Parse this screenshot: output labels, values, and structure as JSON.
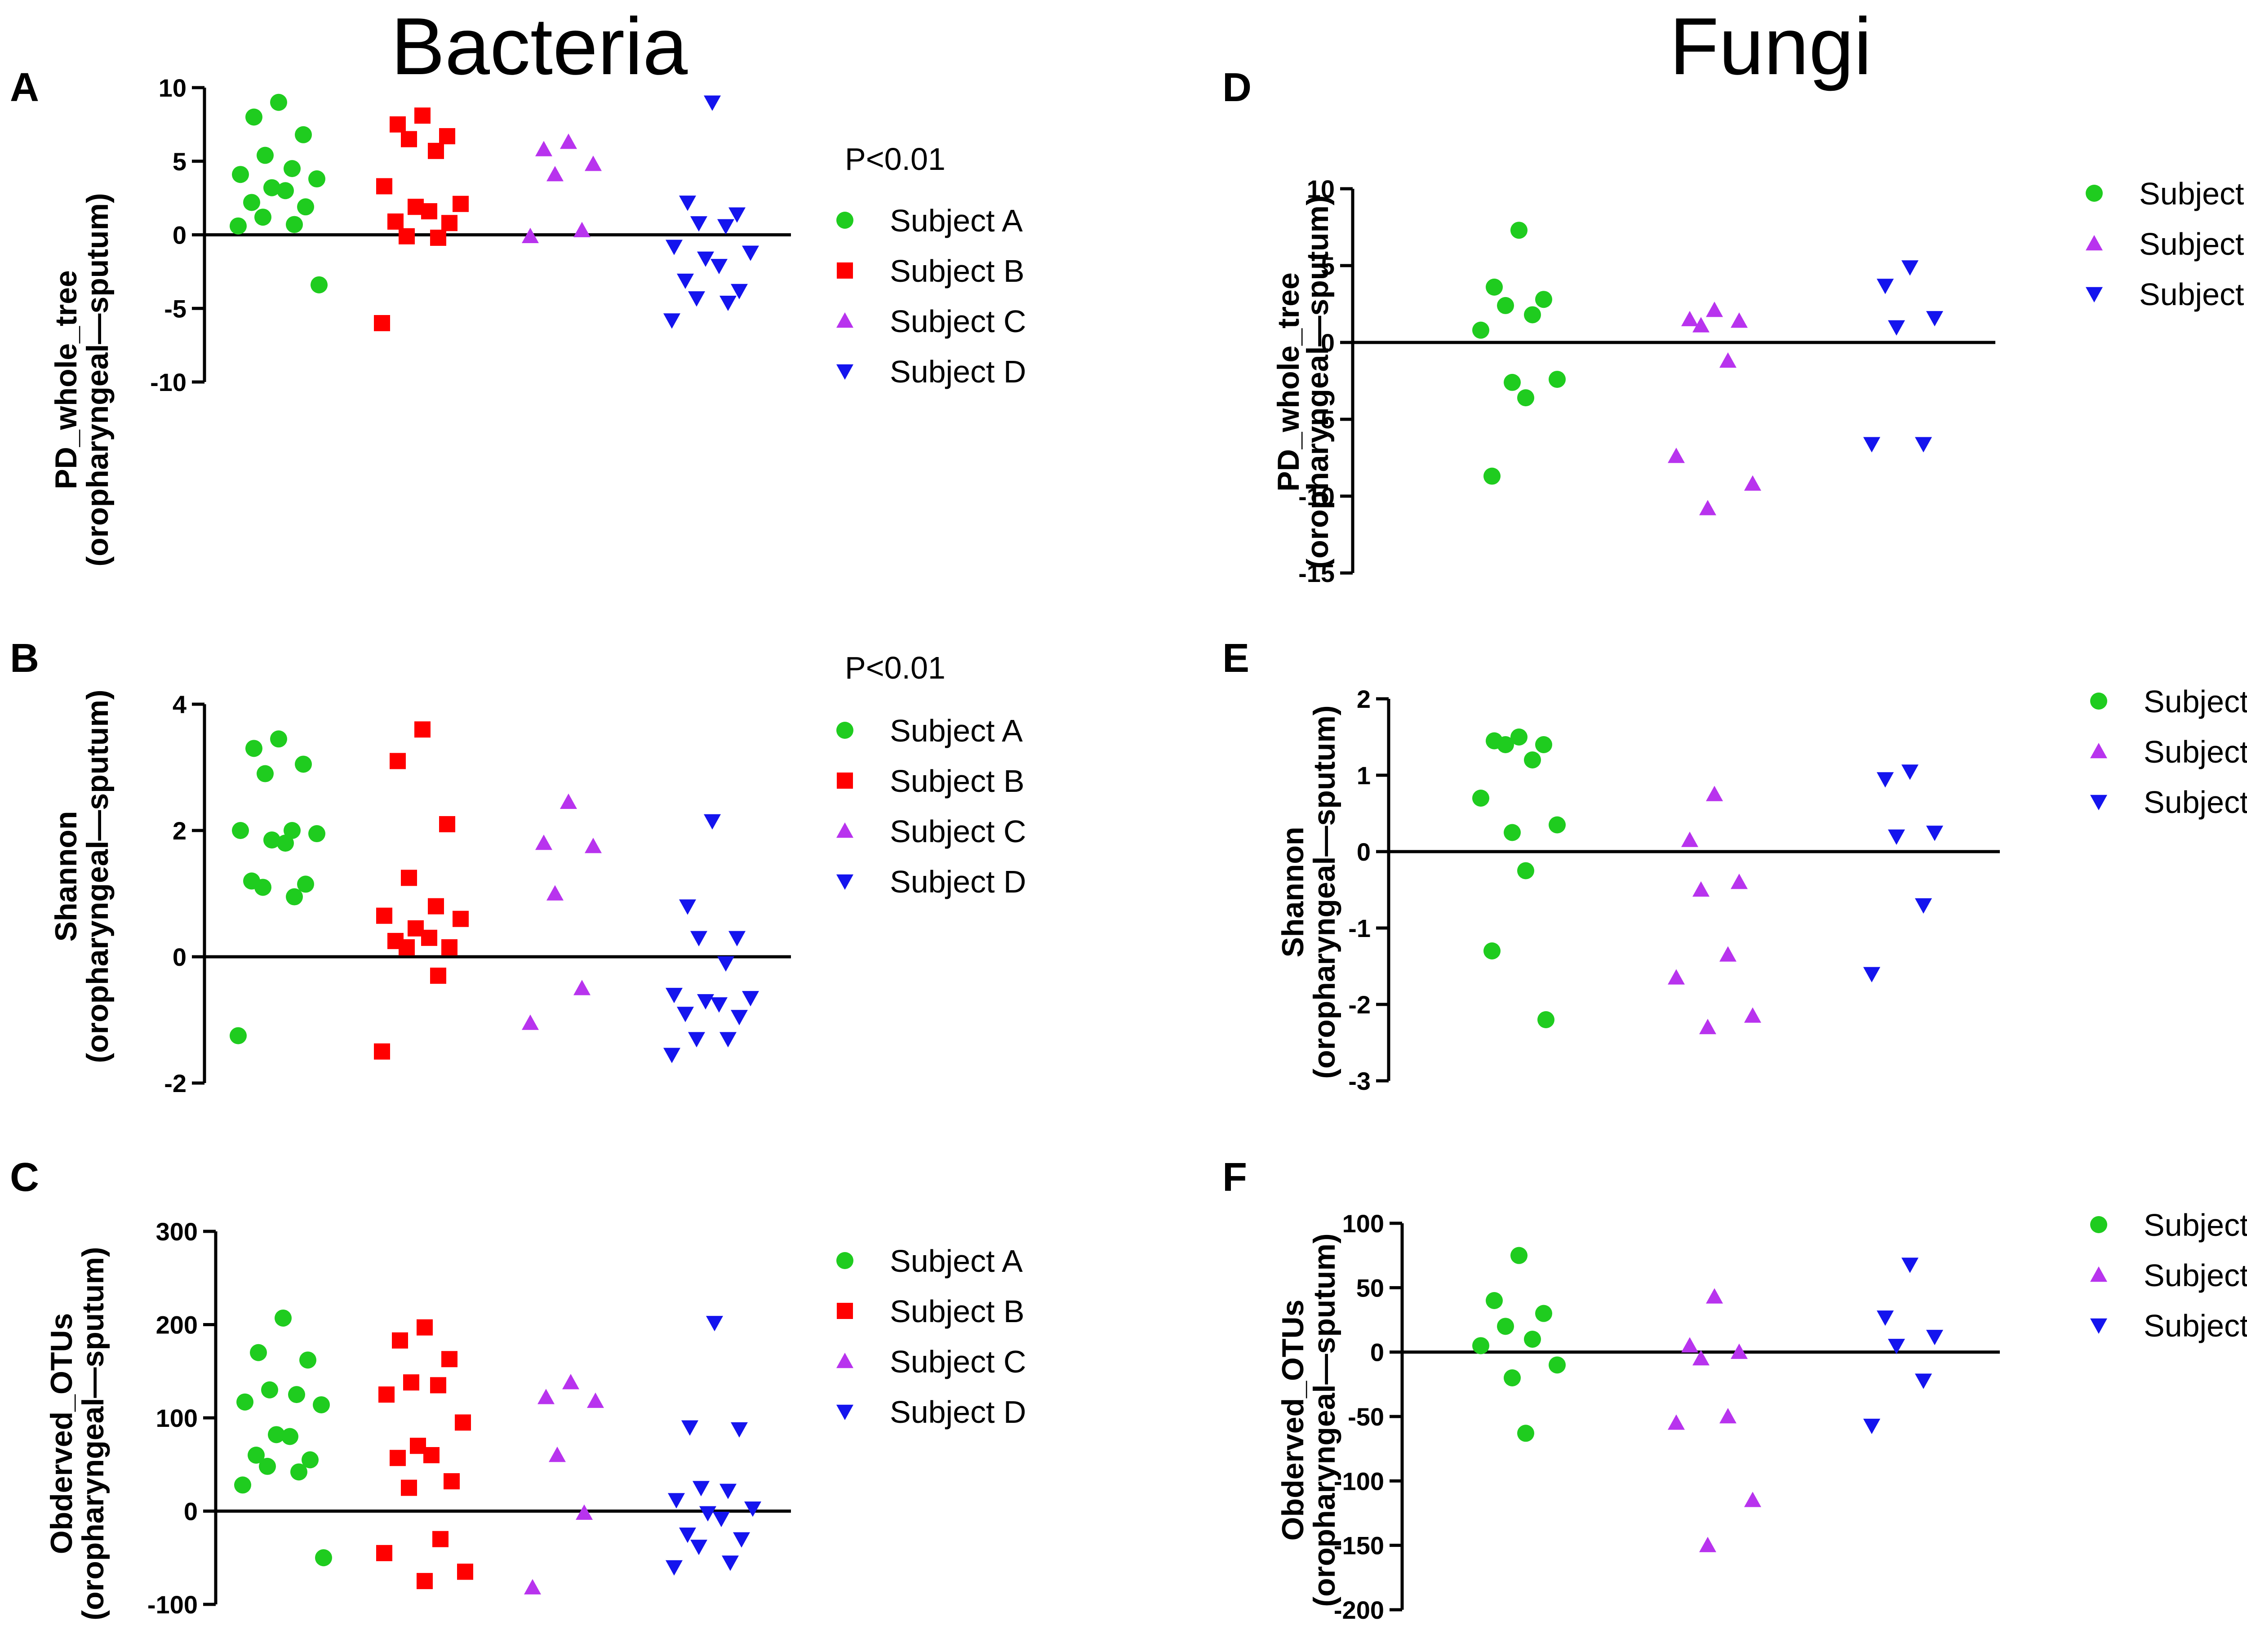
{
  "headings": {
    "left": "Bacteria",
    "right": "Fungi"
  },
  "colors": {
    "Subject A": "#1fcc1f",
    "Subject B": "#ff0000",
    "Subject C": "#b833ee",
    "Subject D": "#1414ee"
  },
  "markers": {
    "Subject A": "circle",
    "Subject B": "square",
    "Subject C": "triangle-up",
    "Subject D": "triangle-down"
  },
  "chart_data": [
    {
      "type": "scatter",
      "panel": "A",
      "ylabel": [
        "PD_whole_tree",
        "(oropharyngeal—sputum)"
      ],
      "ylim": [
        -10,
        10
      ],
      "yticks": [
        -10,
        -5,
        0,
        5,
        10
      ],
      "annotation": "P<0.01",
      "legend": [
        "Subject A",
        "Subject B",
        "Subject C",
        "Subject D"
      ],
      "series": [
        {
          "name": "Subject A",
          "values": [
            9.0,
            8.0,
            6.8,
            5.4,
            4.5,
            4.1,
            3.8,
            3.2,
            3.0,
            2.2,
            1.9,
            1.2,
            0.7,
            0.6,
            -3.4
          ]
        },
        {
          "name": "Subject B",
          "values": [
            8.1,
            7.5,
            6.7,
            6.5,
            5.7,
            3.3,
            2.1,
            1.9,
            1.6,
            0.9,
            0.8,
            -0.1,
            -0.2,
            -6.0
          ]
        },
        {
          "name": "Subject C",
          "values": [
            6.3,
            5.8,
            4.8,
            4.1,
            0.3,
            -0.1
          ]
        },
        {
          "name": "Subject D",
          "values": [
            9.0,
            2.2,
            1.4,
            0.8,
            0.6,
            -0.8,
            -1.2,
            -1.6,
            -2.1,
            -3.1,
            -3.8,
            -4.3,
            -4.6,
            -5.8
          ]
        }
      ]
    },
    {
      "type": "scatter",
      "panel": "B",
      "ylabel": [
        "Shannon",
        "(oropharyngeal—sputum)"
      ],
      "ylim": [
        -2,
        4
      ],
      "yticks": [
        -2,
        0,
        2,
        4
      ],
      "annotation": "P<0.01",
      "legend": [
        "Subject A",
        "Subject B",
        "Subject C",
        "Subject D"
      ],
      "series": [
        {
          "name": "Subject A",
          "values": [
            3.45,
            3.3,
            3.05,
            2.9,
            2.0,
            2.0,
            1.95,
            1.85,
            1.8,
            1.2,
            1.15,
            1.1,
            0.95,
            -1.25
          ]
        },
        {
          "name": "Subject B",
          "values": [
            3.6,
            3.1,
            2.1,
            1.25,
            0.8,
            0.65,
            0.6,
            0.45,
            0.3,
            0.25,
            0.15,
            0.15,
            -0.3,
            -1.5
          ]
        },
        {
          "name": "Subject C",
          "values": [
            2.45,
            1.8,
            1.75,
            1.0,
            -0.5,
            -1.05
          ]
        },
        {
          "name": "Subject D",
          "values": [
            2.15,
            0.8,
            0.3,
            0.3,
            -0.1,
            -0.6,
            -0.65,
            -0.7,
            -0.75,
            -0.9,
            -0.95,
            -1.3,
            -1.3,
            -1.55
          ]
        }
      ]
    },
    {
      "type": "scatter",
      "panel": "C",
      "ylabel": [
        "Obderved_OTUs",
        "(oropharyngeal—sputum)"
      ],
      "ylim": [
        -100,
        300
      ],
      "yticks": [
        -100,
        0,
        100,
        200,
        300
      ],
      "annotation": "",
      "legend": [
        "Subject A",
        "Subject B",
        "Subject C",
        "Subject D"
      ],
      "series": [
        {
          "name": "Subject A",
          "values": [
            207,
            170,
            162,
            130,
            125,
            117,
            114,
            82,
            80,
            60,
            55,
            48,
            42,
            28,
            -50
          ]
        },
        {
          "name": "Subject B",
          "values": [
            197,
            183,
            163,
            138,
            135,
            125,
            95,
            70,
            60,
            57,
            32,
            25,
            -30,
            -45,
            -65,
            -75
          ]
        },
        {
          "name": "Subject C",
          "values": [
            138,
            122,
            118,
            60,
            -2,
            -82
          ]
        },
        {
          "name": "Subject D",
          "values": [
            202,
            90,
            88,
            25,
            22,
            12,
            3,
            -2,
            -8,
            -25,
            -30,
            -38,
            -55,
            -60
          ]
        }
      ]
    },
    {
      "type": "scatter",
      "panel": "D",
      "ylabel": [
        "PD_whole_tree",
        "(oropharyngeal—sputum)"
      ],
      "ylim": [
        -15,
        10
      ],
      "yticks": [
        -15,
        -10,
        -5,
        0,
        5,
        10
      ],
      "annotation": "",
      "legend": [
        "Subject A",
        "Subject C",
        "Subject D"
      ],
      "series": [
        {
          "name": "Subject A",
          "values": [
            7.3,
            3.6,
            2.8,
            2.4,
            1.8,
            0.8,
            -2.4,
            -2.6,
            -3.6,
            -8.7
          ]
        },
        {
          "name": "Subject C",
          "values": [
            2.1,
            1.5,
            1.4,
            1.1,
            -1.2,
            -7.4,
            -9.2,
            -10.8
          ]
        },
        {
          "name": "Subject D",
          "values": [
            4.9,
            3.7,
            1.6,
            1.0,
            -6.6,
            -6.6
          ]
        }
      ]
    },
    {
      "type": "scatter",
      "panel": "E",
      "ylabel": [
        "Shannon",
        "(oropharyngeal—sputum)"
      ],
      "ylim": [
        -3,
        2
      ],
      "yticks": [
        -3,
        -2,
        -1,
        0,
        1,
        2
      ],
      "annotation": "",
      "legend": [
        "Subject A",
        "Subject C",
        "Subject D"
      ],
      "series": [
        {
          "name": "Subject A",
          "values": [
            1.5,
            1.45,
            1.4,
            1.4,
            1.2,
            0.7,
            0.35,
            0.25,
            -0.25,
            -1.3,
            -2.2
          ]
        },
        {
          "name": "Subject C",
          "values": [
            0.75,
            0.15,
            -0.4,
            -0.5,
            -1.35,
            -1.65,
            -2.15,
            -2.3
          ]
        },
        {
          "name": "Subject D",
          "values": [
            1.05,
            0.95,
            0.25,
            0.2,
            -0.7,
            -1.6
          ]
        }
      ]
    },
    {
      "type": "scatter",
      "panel": "F",
      "ylabel": [
        "Obderved_OTUs",
        "(oropharyngeal—sputum)"
      ],
      "ylim": [
        -200,
        100
      ],
      "yticks": [
        -200,
        -150,
        -100,
        -50,
        0,
        50,
        100
      ],
      "annotation": "",
      "legend": [
        "Subject A",
        "Subject C",
        "Subject D"
      ],
      "series": [
        {
          "name": "Subject A",
          "values": [
            75,
            40,
            30,
            20,
            10,
            5,
            -10,
            -20,
            -63
          ]
        },
        {
          "name": "Subject C",
          "values": [
            43,
            5,
            0,
            -5,
            -50,
            -55,
            -115,
            -150
          ]
        },
        {
          "name": "Subject D",
          "values": [
            68,
            27,
            12,
            5,
            -22,
            -57
          ]
        }
      ]
    }
  ]
}
